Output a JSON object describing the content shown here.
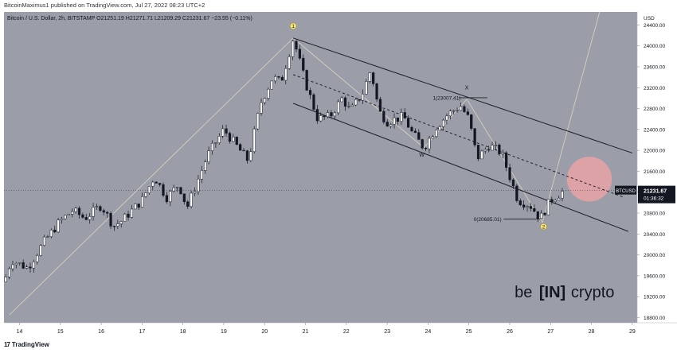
{
  "published": "BitcoinMaximus1 published on TradingView.com, Jul 27, 2022 08:23 UTC+2",
  "footer_logo": "TradingView",
  "footer_logo_mark": "17",
  "colors": {
    "panel_bg": "#9b9ea8",
    "candle_up": "#ffffff",
    "candle_down": "#131722",
    "channel": "#1e1e28",
    "trend": "#e8e6c4",
    "circle_fill": "#e7a2a4",
    "label_circle": "#f4e27a",
    "price_tag": "#131722"
  },
  "chart_data": {
    "type": "candlestick",
    "symbol_line": {
      "name": "Bitcoin / U.S. Dollar, 2h, BITSTAMP",
      "o": "O21251.19",
      "h": "H21271.71",
      "l": "L21209.29",
      "c": "C21231.67",
      "chg": "−23.55 (−0.11%)"
    },
    "currency": "USD",
    "y_ticks": [
      "24400.00",
      "24000.00",
      "23600.00",
      "23200.00",
      "22800.00",
      "22400.00",
      "22000.00",
      "21600.00",
      "21200.00",
      "20800.00",
      "20400.00",
      "20000.00",
      "19600.00",
      "19200.00",
      "18800.00"
    ],
    "y_tick_values": [
      24400,
      24000,
      23600,
      23200,
      22800,
      22400,
      22000,
      21600,
      21200,
      20800,
      20400,
      20000,
      19600,
      19200,
      18800
    ],
    "ylim": [
      18700,
      24650
    ],
    "x_ticks": [
      "14",
      "15",
      "16",
      "17",
      "18",
      "19",
      "20",
      "21",
      "22",
      "23",
      "24",
      "25",
      "26",
      "27",
      "28",
      "29"
    ],
    "x_tick_days": [
      14,
      15,
      16,
      17,
      18,
      19,
      20,
      21,
      22,
      23,
      24,
      25,
      26,
      27,
      28,
      29
    ],
    "xlim": [
      13.62,
      29.12
    ],
    "last_day": 27.33,
    "price_label": {
      "symbol": "BTCUSD",
      "value": "21231.67",
      "time": "01:36:32",
      "price": 21231.67
    },
    "annotations": {
      "w": "W",
      "x": "X",
      "fib_top": "1(23007.41)",
      "fib_top_price": 23007.41,
      "fib_bottom": "0(20685.01)",
      "fib_bottom_price": 20685.01,
      "wave_1": "1",
      "wave_2": "2"
    },
    "anchor_points": [
      {
        "d": 13.62,
        "p": 19480
      },
      {
        "d": 13.8,
        "p": 19900
      },
      {
        "d": 14.2,
        "p": 19750
      },
      {
        "d": 14.6,
        "p": 20250
      },
      {
        "d": 15.0,
        "p": 20650
      },
      {
        "d": 15.3,
        "p": 20850
      },
      {
        "d": 15.6,
        "p": 20700
      },
      {
        "d": 16.0,
        "p": 20950
      },
      {
        "d": 16.3,
        "p": 20550
      },
      {
        "d": 16.5,
        "p": 20650
      },
      {
        "d": 17.0,
        "p": 21050
      },
      {
        "d": 17.3,
        "p": 21500
      },
      {
        "d": 17.6,
        "p": 21100
      },
      {
        "d": 17.9,
        "p": 21350
      },
      {
        "d": 18.1,
        "p": 20900
      },
      {
        "d": 18.3,
        "p": 21300
      },
      {
        "d": 18.6,
        "p": 21900
      },
      {
        "d": 19.0,
        "p": 22400
      },
      {
        "d": 19.3,
        "p": 22100
      },
      {
        "d": 19.6,
        "p": 21800
      },
      {
        "d": 19.9,
        "p": 22900
      },
      {
        "d": 20.2,
        "p": 23400
      },
      {
        "d": 20.4,
        "p": 23300
      },
      {
        "d": 20.7,
        "p": 24150
      },
      {
        "d": 21.0,
        "p": 23300
      },
      {
        "d": 21.3,
        "p": 22600
      },
      {
        "d": 21.6,
        "p": 22650
      },
      {
        "d": 21.9,
        "p": 23000
      },
      {
        "d": 22.1,
        "p": 22750
      },
      {
        "d": 22.4,
        "p": 23100
      },
      {
        "d": 22.6,
        "p": 23550
      },
      {
        "d": 22.8,
        "p": 22750
      },
      {
        "d": 23.0,
        "p": 22550
      },
      {
        "d": 23.4,
        "p": 22650
      },
      {
        "d": 23.6,
        "p": 22350
      },
      {
        "d": 23.9,
        "p": 22050
      },
      {
        "d": 24.2,
        "p": 22450
      },
      {
        "d": 24.5,
        "p": 22700
      },
      {
        "d": 24.8,
        "p": 22850
      },
      {
        "d": 25.0,
        "p": 22600
      },
      {
        "d": 25.2,
        "p": 21850
      },
      {
        "d": 25.5,
        "p": 22100
      },
      {
        "d": 25.8,
        "p": 21950
      },
      {
        "d": 26.0,
        "p": 21500
      },
      {
        "d": 26.2,
        "p": 21050
      },
      {
        "d": 26.5,
        "p": 20950
      },
      {
        "d": 26.75,
        "p": 20700
      },
      {
        "d": 27.0,
        "p": 21050
      },
      {
        "d": 27.33,
        "p": 21230
      }
    ],
    "channel_lines": [
      {
        "d1": 20.7,
        "p1": 24150,
        "d2": 29.0,
        "p2": 21950
      },
      {
        "d1": 20.7,
        "p1": 23450,
        "d2": 28.8,
        "p2": 21100
      },
      {
        "d1": 20.7,
        "p1": 22900,
        "d2": 28.9,
        "p2": 20450
      }
    ],
    "trend_lines": [
      {
        "d1": 13.75,
        "p1": 18850,
        "d2": 20.7,
        "p2": 24150
      },
      {
        "d1": 20.7,
        "p1": 24150,
        "d2": 23.9,
        "p2": 22050
      },
      {
        "d1": 23.9,
        "p1": 22050,
        "d2": 24.95,
        "p2": 22980
      },
      {
        "d1": 24.95,
        "p1": 22980,
        "d2": 26.8,
        "p2": 20620
      },
      {
        "d1": 26.8,
        "p1": 20620,
        "d2": 28.2,
        "p2": 24650
      }
    ],
    "target_zone": {
      "d": 27.95,
      "p": 21450,
      "radius_days": 0.55
    },
    "fib_segments": [
      {
        "d1": 24.75,
        "d2": 25.45,
        "p": 23007.41
      },
      {
        "d1": 25.85,
        "d2": 26.75,
        "p": 20685.01
      }
    ],
    "label_positions": {
      "w": {
        "d": 23.85,
        "p": 21880
      },
      "x": {
        "d": 24.95,
        "p": 23170
      },
      "wave_1": {
        "d": 20.7,
        "p": 24380
      },
      "wave_2": {
        "d": 26.83,
        "p": 20540
      }
    },
    "watermark": {
      "left": "be",
      "mid": "[IN]",
      "right": "crypto"
    }
  }
}
